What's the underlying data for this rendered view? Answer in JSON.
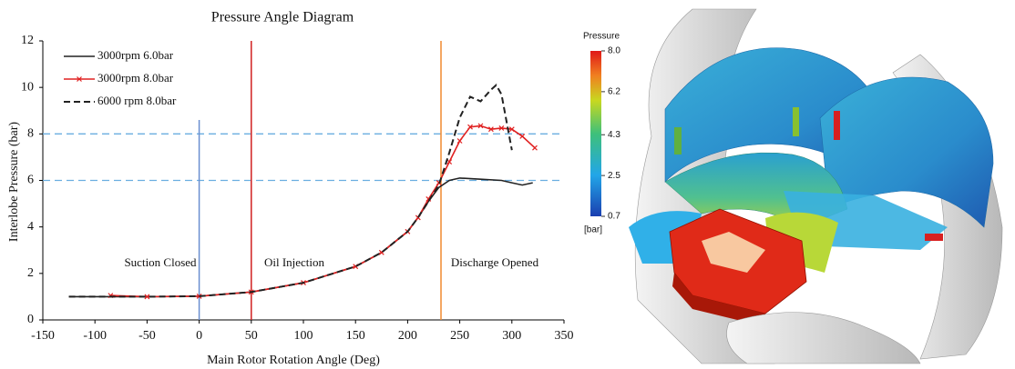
{
  "chart_data": {
    "type": "line",
    "title": "Pressure Angle Diagram",
    "x_label": "Main Rotor Rotation Angle (Deg)",
    "y_label": "Interlobe Pressure (bar)",
    "xlim": [
      -150,
      350
    ],
    "xticks": [
      -150,
      -100,
      -50,
      0,
      50,
      100,
      150,
      200,
      250,
      300,
      350
    ],
    "ylim": [
      0,
      12
    ],
    "yticks": [
      0,
      2,
      4,
      6,
      8,
      10,
      12
    ],
    "grid": false,
    "legend": "upper left",
    "series": [
      {
        "name": "3000rpm 6.0bar",
        "color": "#222222",
        "style": "solid",
        "x": [
          -125,
          -100,
          -50,
          0,
          50,
          100,
          150,
          175,
          200,
          210,
          220,
          230,
          240,
          250,
          270,
          290,
          300,
          310,
          320
        ],
        "values": [
          1.0,
          1.0,
          1.0,
          1.02,
          1.2,
          1.6,
          2.3,
          2.9,
          3.8,
          4.4,
          5.1,
          5.7,
          6.0,
          6.1,
          6.05,
          6.0,
          5.9,
          5.8,
          5.9
        ]
      },
      {
        "name": "3000rpm 8.0bar",
        "color": "#e02020",
        "style": "marker",
        "x": [
          -85,
          -50,
          0,
          50,
          100,
          150,
          175,
          200,
          210,
          220,
          230,
          240,
          250,
          260,
          270,
          280,
          290,
          300,
          310,
          322
        ],
        "values": [
          1.05,
          1.0,
          1.02,
          1.2,
          1.6,
          2.3,
          2.9,
          3.8,
          4.4,
          5.2,
          5.9,
          6.8,
          7.7,
          8.3,
          8.35,
          8.2,
          8.25,
          8.2,
          7.9,
          7.4
        ]
      },
      {
        "name": "6000 rpm 8.0bar",
        "color": "#222222",
        "style": "dashed",
        "x": [
          -125,
          -100,
          -50,
          0,
          50,
          100,
          150,
          175,
          200,
          210,
          220,
          230,
          240,
          250,
          260,
          270,
          280,
          285,
          290,
          300
        ],
        "values": [
          1.0,
          1.0,
          1.0,
          1.02,
          1.2,
          1.6,
          2.3,
          2.9,
          3.8,
          4.4,
          5.1,
          5.8,
          7.2,
          8.7,
          9.6,
          9.4,
          9.9,
          10.1,
          9.7,
          7.3
        ]
      }
    ],
    "vlines": [
      {
        "x": 0,
        "color": "#6a8fd0"
      },
      {
        "x": 50,
        "color": "#d02020"
      },
      {
        "x": 232,
        "color": "#f08a30"
      }
    ],
    "hlines": [
      {
        "y": 6,
        "color": "#6aaee0"
      },
      {
        "y": 8,
        "color": "#6aaee0"
      }
    ],
    "annotations": [
      "Suction Closed",
      "Oil Injection",
      "Discharge Opened"
    ]
  },
  "colorbar": {
    "title": "Pressure",
    "unit": "[bar]",
    "lim": [
      0.7,
      8.0
    ],
    "ticks": [
      {
        "value": 8.0,
        "label": "8.0"
      },
      {
        "value": 6.2,
        "label": "6.2"
      },
      {
        "value": 4.3,
        "label": "4.3"
      },
      {
        "value": 2.5,
        "label": "2.5"
      },
      {
        "value": 0.7,
        "label": "0.7"
      }
    ]
  }
}
